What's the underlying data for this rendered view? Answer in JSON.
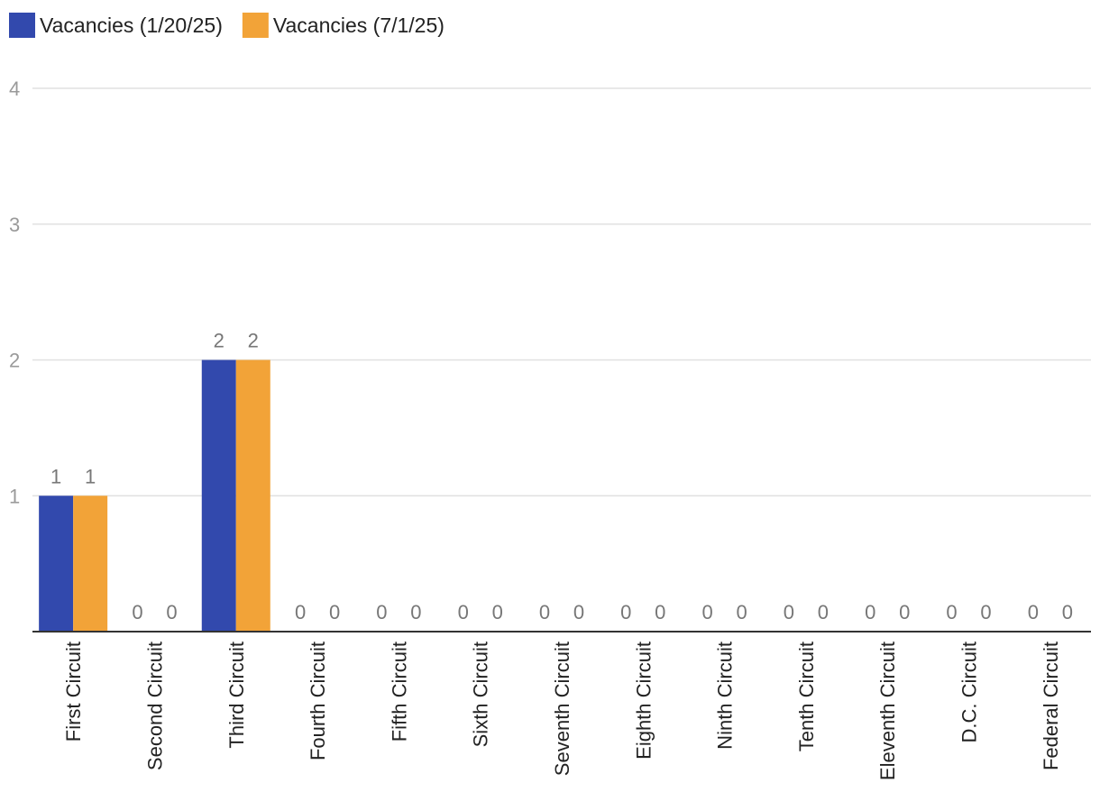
{
  "chart_data": {
    "type": "bar",
    "title": "",
    "xlabel": "",
    "ylabel": "",
    "ylim": [
      0,
      4
    ],
    "yticks": [
      1,
      2,
      3,
      4
    ],
    "grid": true,
    "legend_position": "top-left",
    "data_labels": true,
    "categories": [
      "First Circuit",
      "Second Circuit",
      "Third Circuit",
      "Fourth Circuit",
      "Fifth Circuit",
      "Sixth Circuit",
      "Seventh Circuit",
      "Eighth Circuit",
      "Ninth Circuit",
      "Tenth Circuit",
      "Eleventh Circuit",
      "D.C. Circuit",
      "Federal Circuit"
    ],
    "series": [
      {
        "name": "Vacancies (1/20/25)",
        "color": "#3249ad",
        "values": [
          1,
          0,
          2,
          0,
          0,
          0,
          0,
          0,
          0,
          0,
          0,
          0,
          0
        ]
      },
      {
        "name": "Vacancies (7/1/25)",
        "color": "#f2a338",
        "values": [
          1,
          0,
          2,
          0,
          0,
          0,
          0,
          0,
          0,
          0,
          0,
          0,
          0
        ]
      }
    ]
  }
}
